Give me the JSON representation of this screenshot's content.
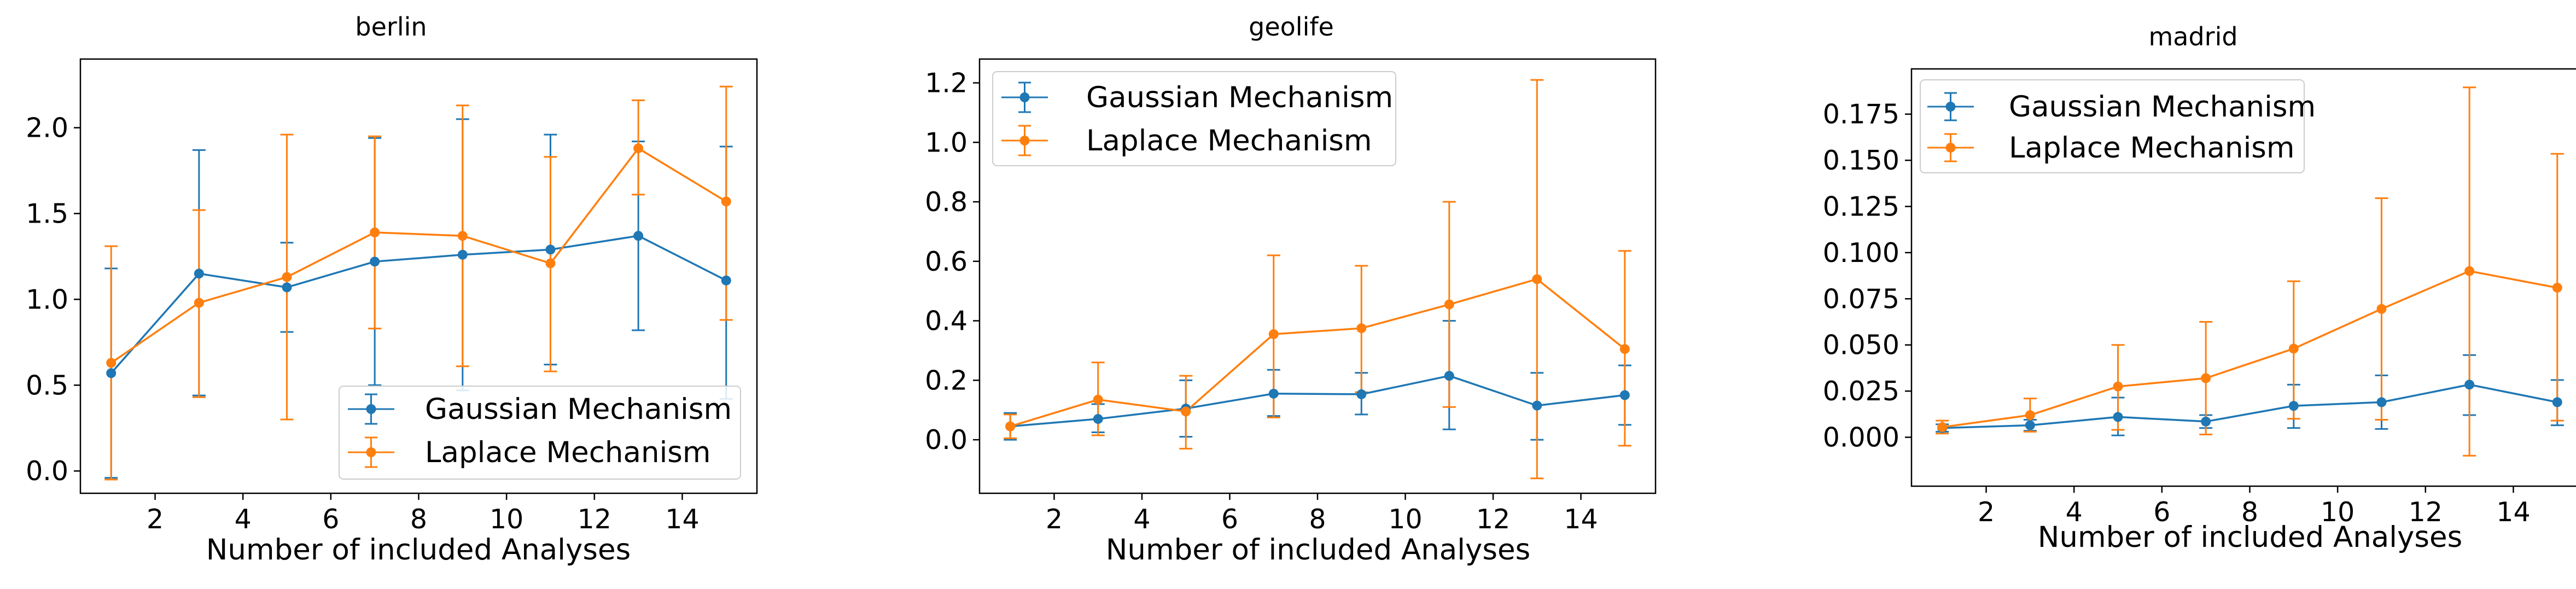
{
  "colors": {
    "gaussian": "#1f77b4",
    "laplace": "#ff7f0e",
    "axis": "#000000",
    "legend_border": "#cccccc"
  },
  "chart_data": [
    {
      "type": "line",
      "title": "berlin",
      "xlabel": "Number of included Analyses",
      "ylabel": "",
      "xlim": [
        0.3,
        15.7
      ],
      "ylim": [
        -0.13,
        2.4
      ],
      "xticks": [
        2,
        4,
        6,
        8,
        10,
        12,
        14
      ],
      "yticks": [
        0.0,
        0.5,
        1.0,
        1.5,
        2.0
      ],
      "ytick_labels": [
        "0.0",
        "0.5",
        "1.0",
        "1.5",
        "2.0"
      ],
      "legend_position": "lower-right",
      "x": [
        1,
        3,
        5,
        7,
        9,
        11,
        13,
        15
      ],
      "series": [
        {
          "name": "Gaussian Mechanism",
          "color_key": "gaussian",
          "values": [
            0.57,
            1.15,
            1.07,
            1.22,
            1.26,
            1.29,
            1.37,
            1.11
          ],
          "err_low": [
            -0.04,
            0.44,
            0.81,
            0.5,
            0.47,
            0.62,
            0.82,
            0.42
          ],
          "err_high": [
            1.18,
            1.87,
            1.33,
            1.94,
            2.05,
            1.96,
            1.92,
            1.89
          ]
        },
        {
          "name": "Laplace Mechanism",
          "color_key": "laplace",
          "values": [
            0.63,
            0.98,
            1.13,
            1.39,
            1.37,
            1.21,
            1.88,
            1.57
          ],
          "err_low": [
            -0.05,
            0.43,
            0.3,
            0.83,
            0.61,
            0.58,
            1.61,
            0.88
          ],
          "err_high": [
            1.31,
            1.52,
            1.96,
            1.95,
            2.13,
            1.83,
            2.16,
            2.24
          ]
        }
      ]
    },
    {
      "type": "line",
      "title": "geolife",
      "xlabel": "Number of included Analyses",
      "ylabel": "",
      "xlim": [
        0.3,
        15.7
      ],
      "ylim": [
        -0.18,
        1.28
      ],
      "xticks": [
        2,
        4,
        6,
        8,
        10,
        12,
        14
      ],
      "yticks": [
        0.0,
        0.2,
        0.4,
        0.6,
        0.8,
        1.0,
        1.2
      ],
      "ytick_labels": [
        "0.0",
        "0.2",
        "0.4",
        "0.6",
        "0.8",
        "1.0",
        "1.2"
      ],
      "legend_position": "top-left",
      "x": [
        1,
        3,
        5,
        7,
        9,
        11,
        13,
        15
      ],
      "series": [
        {
          "name": "Gaussian Mechanism",
          "color_key": "gaussian",
          "values": [
            0.045,
            0.07,
            0.105,
            0.155,
            0.153,
            0.215,
            0.115,
            0.15
          ],
          "err_low": [
            0.0,
            0.025,
            0.01,
            0.08,
            0.085,
            0.035,
            0.0,
            0.05
          ],
          "err_high": [
            0.09,
            0.12,
            0.2,
            0.235,
            0.225,
            0.4,
            0.225,
            0.25
          ]
        },
        {
          "name": "Laplace Mechanism",
          "color_key": "laplace",
          "values": [
            0.045,
            0.135,
            0.095,
            0.355,
            0.375,
            0.455,
            0.54,
            0.305
          ],
          "err_low": [
            0.005,
            0.015,
            -0.03,
            0.075,
            0.16,
            0.11,
            -0.13,
            -0.02
          ],
          "err_high": [
            0.085,
            0.26,
            0.215,
            0.62,
            0.585,
            0.8,
            1.21,
            0.635
          ]
        }
      ]
    },
    {
      "type": "line",
      "title": "madrid",
      "xlabel": "Number of included Analyses",
      "ylabel": "",
      "xlim": [
        0.3,
        15.7
      ],
      "ylim": [
        -0.0265,
        0.1995
      ],
      "xticks": [
        2,
        4,
        6,
        8,
        10,
        12,
        14
      ],
      "yticks": [
        0.0,
        0.025,
        0.05,
        0.075,
        0.1,
        0.125,
        0.15,
        0.175
      ],
      "ytick_labels": [
        "0.000",
        "0.025",
        "0.050",
        "0.075",
        "0.100",
        "0.125",
        "0.150",
        "0.175"
      ],
      "legend_position": "top-left",
      "x": [
        1,
        3,
        5,
        7,
        9,
        11,
        13,
        15
      ],
      "series": [
        {
          "name": "Gaussian Mechanism",
          "color_key": "gaussian",
          "values": [
            0.005,
            0.0065,
            0.011,
            0.0085,
            0.017,
            0.019,
            0.0285,
            0.019
          ],
          "err_low": [
            0.003,
            0.0035,
            0.001,
            0.005,
            0.005,
            0.0045,
            0.012,
            0.0065
          ],
          "err_high": [
            0.007,
            0.0095,
            0.0215,
            0.012,
            0.0285,
            0.0335,
            0.0445,
            0.031
          ]
        },
        {
          "name": "Laplace Mechanism",
          "color_key": "laplace",
          "values": [
            0.0055,
            0.012,
            0.0275,
            0.032,
            0.048,
            0.0695,
            0.09,
            0.081
          ],
          "err_low": [
            0.002,
            0.003,
            0.004,
            0.0015,
            0.01,
            0.0095,
            -0.01,
            0.009
          ],
          "err_high": [
            0.009,
            0.021,
            0.05,
            0.0625,
            0.0845,
            0.1295,
            0.1895,
            0.1535
          ]
        }
      ]
    }
  ]
}
